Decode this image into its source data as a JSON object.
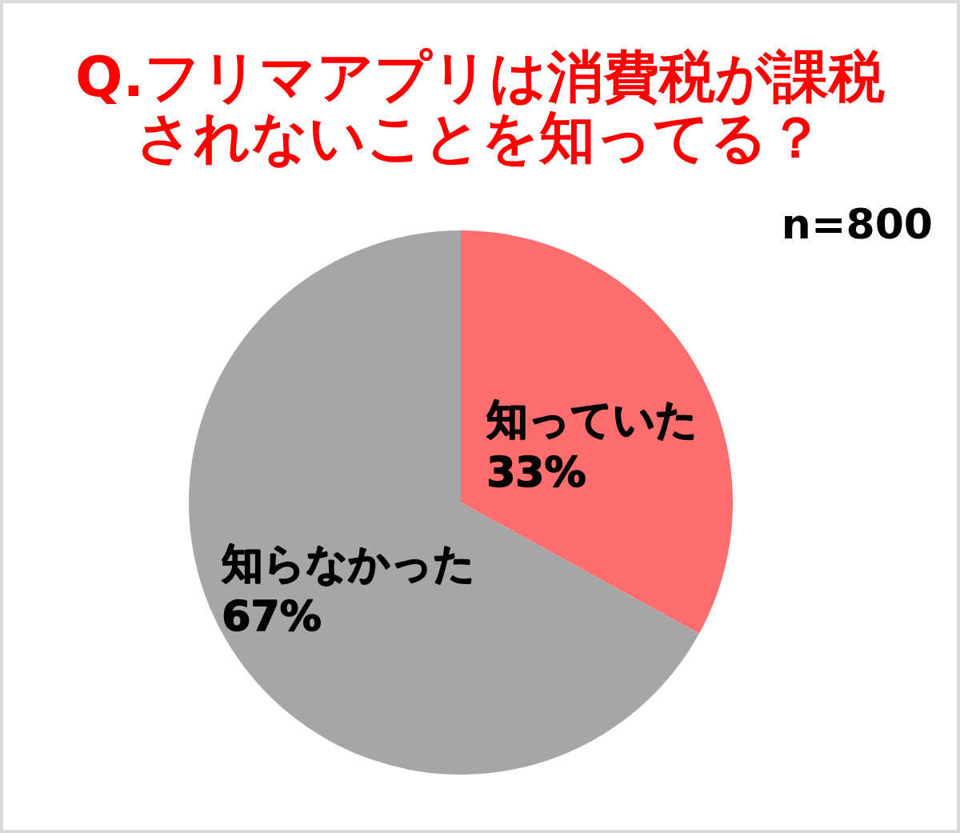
{
  "chart_data": {
    "type": "pie",
    "title": "Q.フリマアプリは消費税が課税されないことを知ってる？",
    "categories": [
      "知っていた",
      "知らなかった"
    ],
    "values": [
      33,
      67
    ],
    "colors": [
      "#ff6e6e",
      "#a6a6a6"
    ],
    "value_labels": [
      "33%",
      "67%"
    ],
    "annotations": [
      "n=800"
    ]
  }
}
